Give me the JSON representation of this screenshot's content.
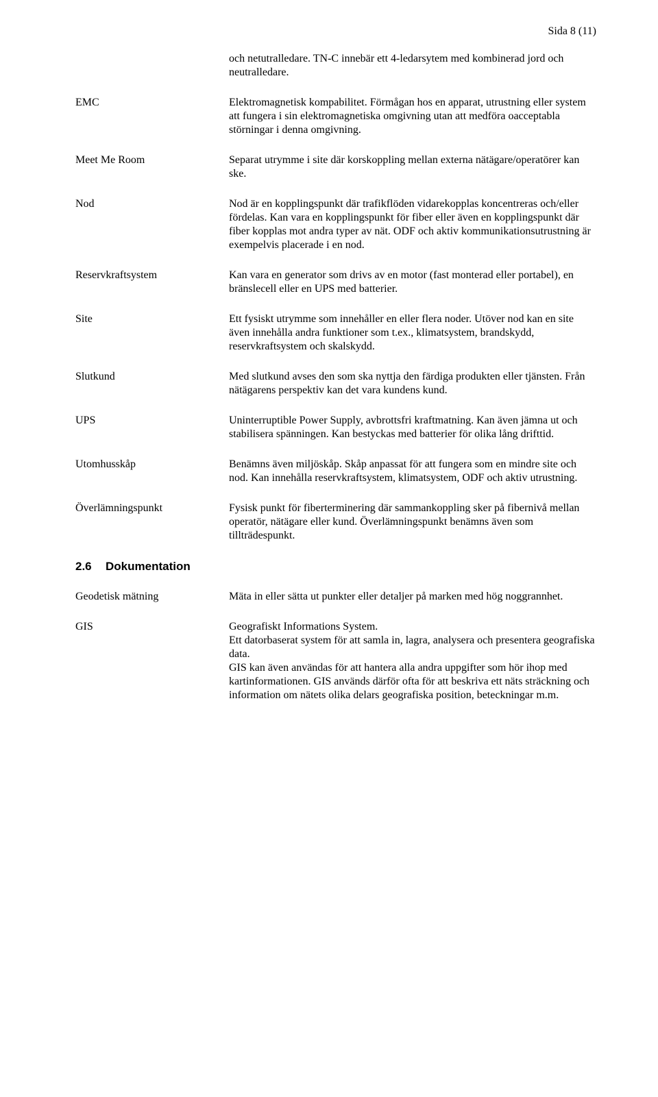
{
  "page_number": "Sida 8 (11)",
  "intro": "och netutralledare. TN-C innebär ett 4-ledarsytem med kombinerad jord och neutralledare.",
  "definitions": [
    {
      "term": "EMC",
      "def": "Elektromagnetisk kompabilitet. Förmågan hos en apparat, utrustning eller system att fungera i sin elektromagnetiska omgivning utan att medföra oacceptabla störningar i denna omgivning."
    },
    {
      "term": "Meet Me Room",
      "def": "Separat utrymme i site där korskoppling mellan externa nätägare/operatörer kan ske."
    },
    {
      "term": "Nod",
      "def": "Nod är en kopplingspunkt där trafikflöden vidarekopplas koncentreras och/eller fördelas. Kan vara en kopplingspunkt för fiber eller även en kopplingspunkt där fiber kopplas mot andra typer av nät. ODF och aktiv kommunikationsutrustning är exempelvis placerade i en nod."
    },
    {
      "term": "Reservkraftsystem",
      "def": "Kan vara en generator som drivs av en motor (fast monterad eller portabel), en bränslecell eller en UPS med batterier."
    },
    {
      "term": "Site",
      "def": "Ett fysiskt utrymme som innehåller en eller flera noder. Utöver nod kan en site även innehålla andra funktioner som t.ex., klimatsystem, brandskydd, reservkraftsystem och skalskydd."
    },
    {
      "term": "Slutkund",
      "def": "Med slutkund avses den som ska nyttja den färdiga produkten eller tjänsten. Från nätägarens perspektiv kan det vara kundens kund."
    },
    {
      "term": "UPS",
      "def": "Uninterruptible Power Supply, avbrottsfri kraftmatning. Kan även jämna ut och stabilisera spänningen. Kan bestyckas med batterier för olika lång drifttid."
    },
    {
      "term": "Utomhusskåp",
      "def": "Benämns även miljöskåp. Skåp anpassat för att fungera som en mindre site och nod. Kan innehålla reservkraftsystem, klimatsystem, ODF och aktiv utrustning."
    },
    {
      "term": "Överlämningspunkt",
      "def": "Fysisk punkt för fiberterminering där sammankoppling sker på fibernivå mellan operatör, nätägare eller kund. Överlämningspunkt benämns även som tillträdespunkt."
    }
  ],
  "section": {
    "number": "2.6",
    "title": "Dokumentation"
  },
  "definitions2": [
    {
      "term": "Geodetisk mätning",
      "def": "Mäta in eller sätta ut punkter eller detaljer på marken med hög noggrannhet."
    },
    {
      "term": "GIS",
      "def": "Geografiskt Informations System.\nEtt datorbaserat system för att samla in, lagra, analysera och presentera geografiska data.\nGIS kan även användas för att hantera alla andra uppgifter som hör ihop med kartinformationen. GIS används därför ofta för att beskriva ett näts sträckning och information om nätets olika delars geografiska position, beteckningar m.m."
    }
  ]
}
